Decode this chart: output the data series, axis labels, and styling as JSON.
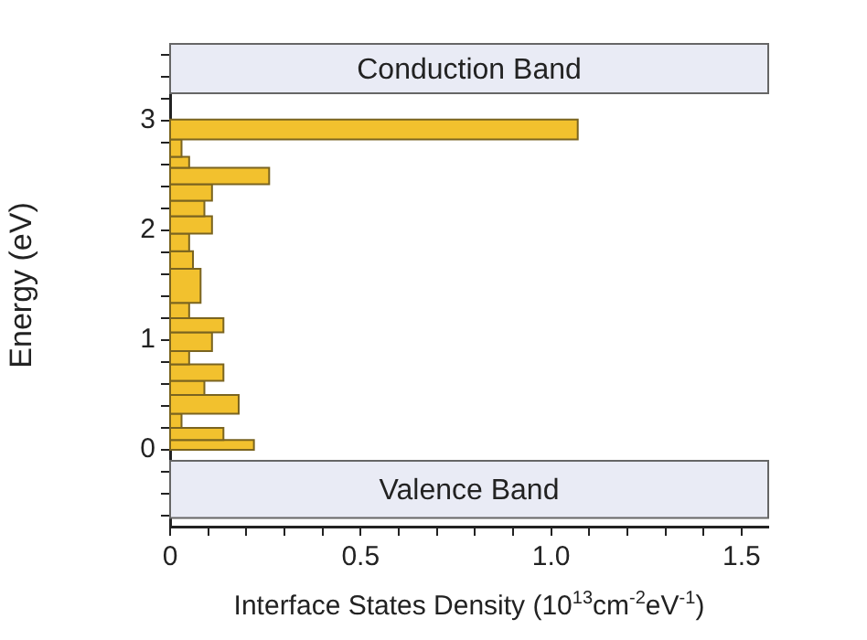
{
  "chart_data": {
    "type": "histogram",
    "orientation": "horizontal",
    "color": "#f2c12e",
    "xlabel": "Interface States Density (10$^{13}$cm$^{-2}$eV$^{-1}$)",
    "ylabel": "Energy (eV)",
    "bins": [
      0,
      0.09,
      0.2,
      0.33,
      0.5,
      0.63,
      0.78,
      0.9,
      1.07,
      1.2,
      1.34,
      1.65,
      1.81,
      1.97,
      2.13,
      2.27,
      2.42,
      2.57,
      2.67,
      2.83,
      3.01
    ],
    "values": [
      0.22,
      0.14,
      0.03,
      0.18,
      0.09,
      0.14,
      0.05,
      0.11,
      0.14,
      0.05,
      0.08,
      0.06,
      0.05,
      0.11,
      0.09,
      0.11,
      0.26,
      0.05,
      0.03,
      1.07
    ],
    "xlim": [
      0,
      1.57
    ],
    "ylim": [
      -0.7,
      3.7
    ],
    "xticks": [
      0,
      {
        "value": 0.1,
        "label": null
      },
      {
        "value": 0.2,
        "label": null
      },
      {
        "value": 0.3,
        "label": null
      },
      {
        "value": 0.4,
        "label": null
      },
      0.5,
      {
        "value": 0.6,
        "label": null
      },
      {
        "value": 0.7,
        "label": null
      },
      {
        "value": 0.8,
        "label": null
      },
      {
        "value": 0.9,
        "label": null
      },
      {
        "value": 1,
        "label": "1.0"
      },
      {
        "value": 1.1,
        "label": null
      },
      {
        "value": 1.2,
        "label": null
      },
      {
        "value": 1.3,
        "label": null
      },
      {
        "value": 1.4,
        "label": null
      },
      1.5
    ],
    "yticks": [
      {
        "value": -0.6,
        "label": null
      },
      {
        "value": -0.4,
        "label": null
      },
      {
        "value": -0.2,
        "label": null
      },
      0,
      {
        "value": 0.2,
        "label": null
      },
      {
        "value": 0.4,
        "label": null
      },
      {
        "value": 0.6,
        "label": null
      },
      {
        "value": 0.8,
        "label": null
      },
      1,
      {
        "value": 1.2,
        "label": null
      },
      {
        "value": 1.4,
        "label": null
      },
      {
        "value": 1.6,
        "label": null
      },
      {
        "value": 1.8,
        "label": null
      },
      2,
      {
        "value": 2.2,
        "label": null
      },
      {
        "value": 2.4,
        "label": null
      },
      {
        "value": 2.6,
        "label": null
      },
      {
        "value": 2.8,
        "label": null
      },
      3,
      {
        "value": 3.2,
        "label": null
      },
      {
        "value": 3.4,
        "label": null
      },
      {
        "value": 3.6,
        "label": null
      }
    ],
    "bands": [
      {
        "axis": "y",
        "from": 3.25,
        "to": 3.7,
        "label": "Conduction Band",
        "color": "#e9ebf5"
      },
      {
        "axis": "y",
        "from": -0.62,
        "to": -0.1,
        "label": "Valence Band",
        "color": "#e9ebf5"
      }
    ]
  }
}
